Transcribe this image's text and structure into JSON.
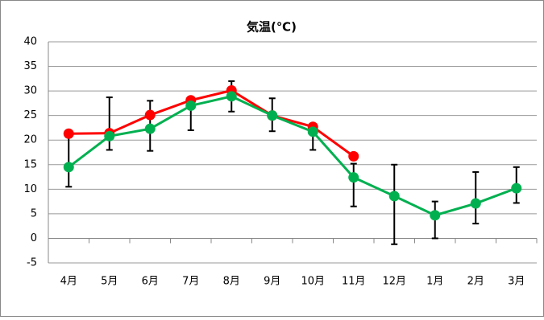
{
  "chart_data": {
    "type": "line",
    "title": "気温(℃)",
    "categories": [
      "4月",
      "5月",
      "6月",
      "7月",
      "8月",
      "9月",
      "10月",
      "11月",
      "12月",
      "1月",
      "2月",
      "3月"
    ],
    "series": [
      {
        "color": "#ff0000",
        "values": [
          21.3,
          21.4,
          25.1,
          28.1,
          30.1,
          25,
          22.7,
          16.7,
          null,
          null,
          null,
          null
        ]
      },
      {
        "color": "#00b050",
        "values": [
          14.5,
          20.8,
          22.3,
          27,
          28.9,
          25,
          21.7,
          12.4,
          8.6,
          4.7,
          7.1,
          10.2
        ],
        "error_low": [
          10.5,
          18,
          17.8,
          22,
          25.8,
          21.8,
          18,
          6.5,
          -1.2,
          0,
          3,
          7.2
        ],
        "error_high": [
          21,
          28.7,
          28,
          28,
          32,
          28.5,
          22.5,
          15.2,
          15,
          7.5,
          13.5,
          14.5
        ]
      }
    ],
    "ylim": [
      -5,
      40
    ],
    "yticks": [
      -5,
      0,
      5,
      10,
      15,
      20,
      25,
      30,
      35,
      40
    ],
    "grid": true
  }
}
